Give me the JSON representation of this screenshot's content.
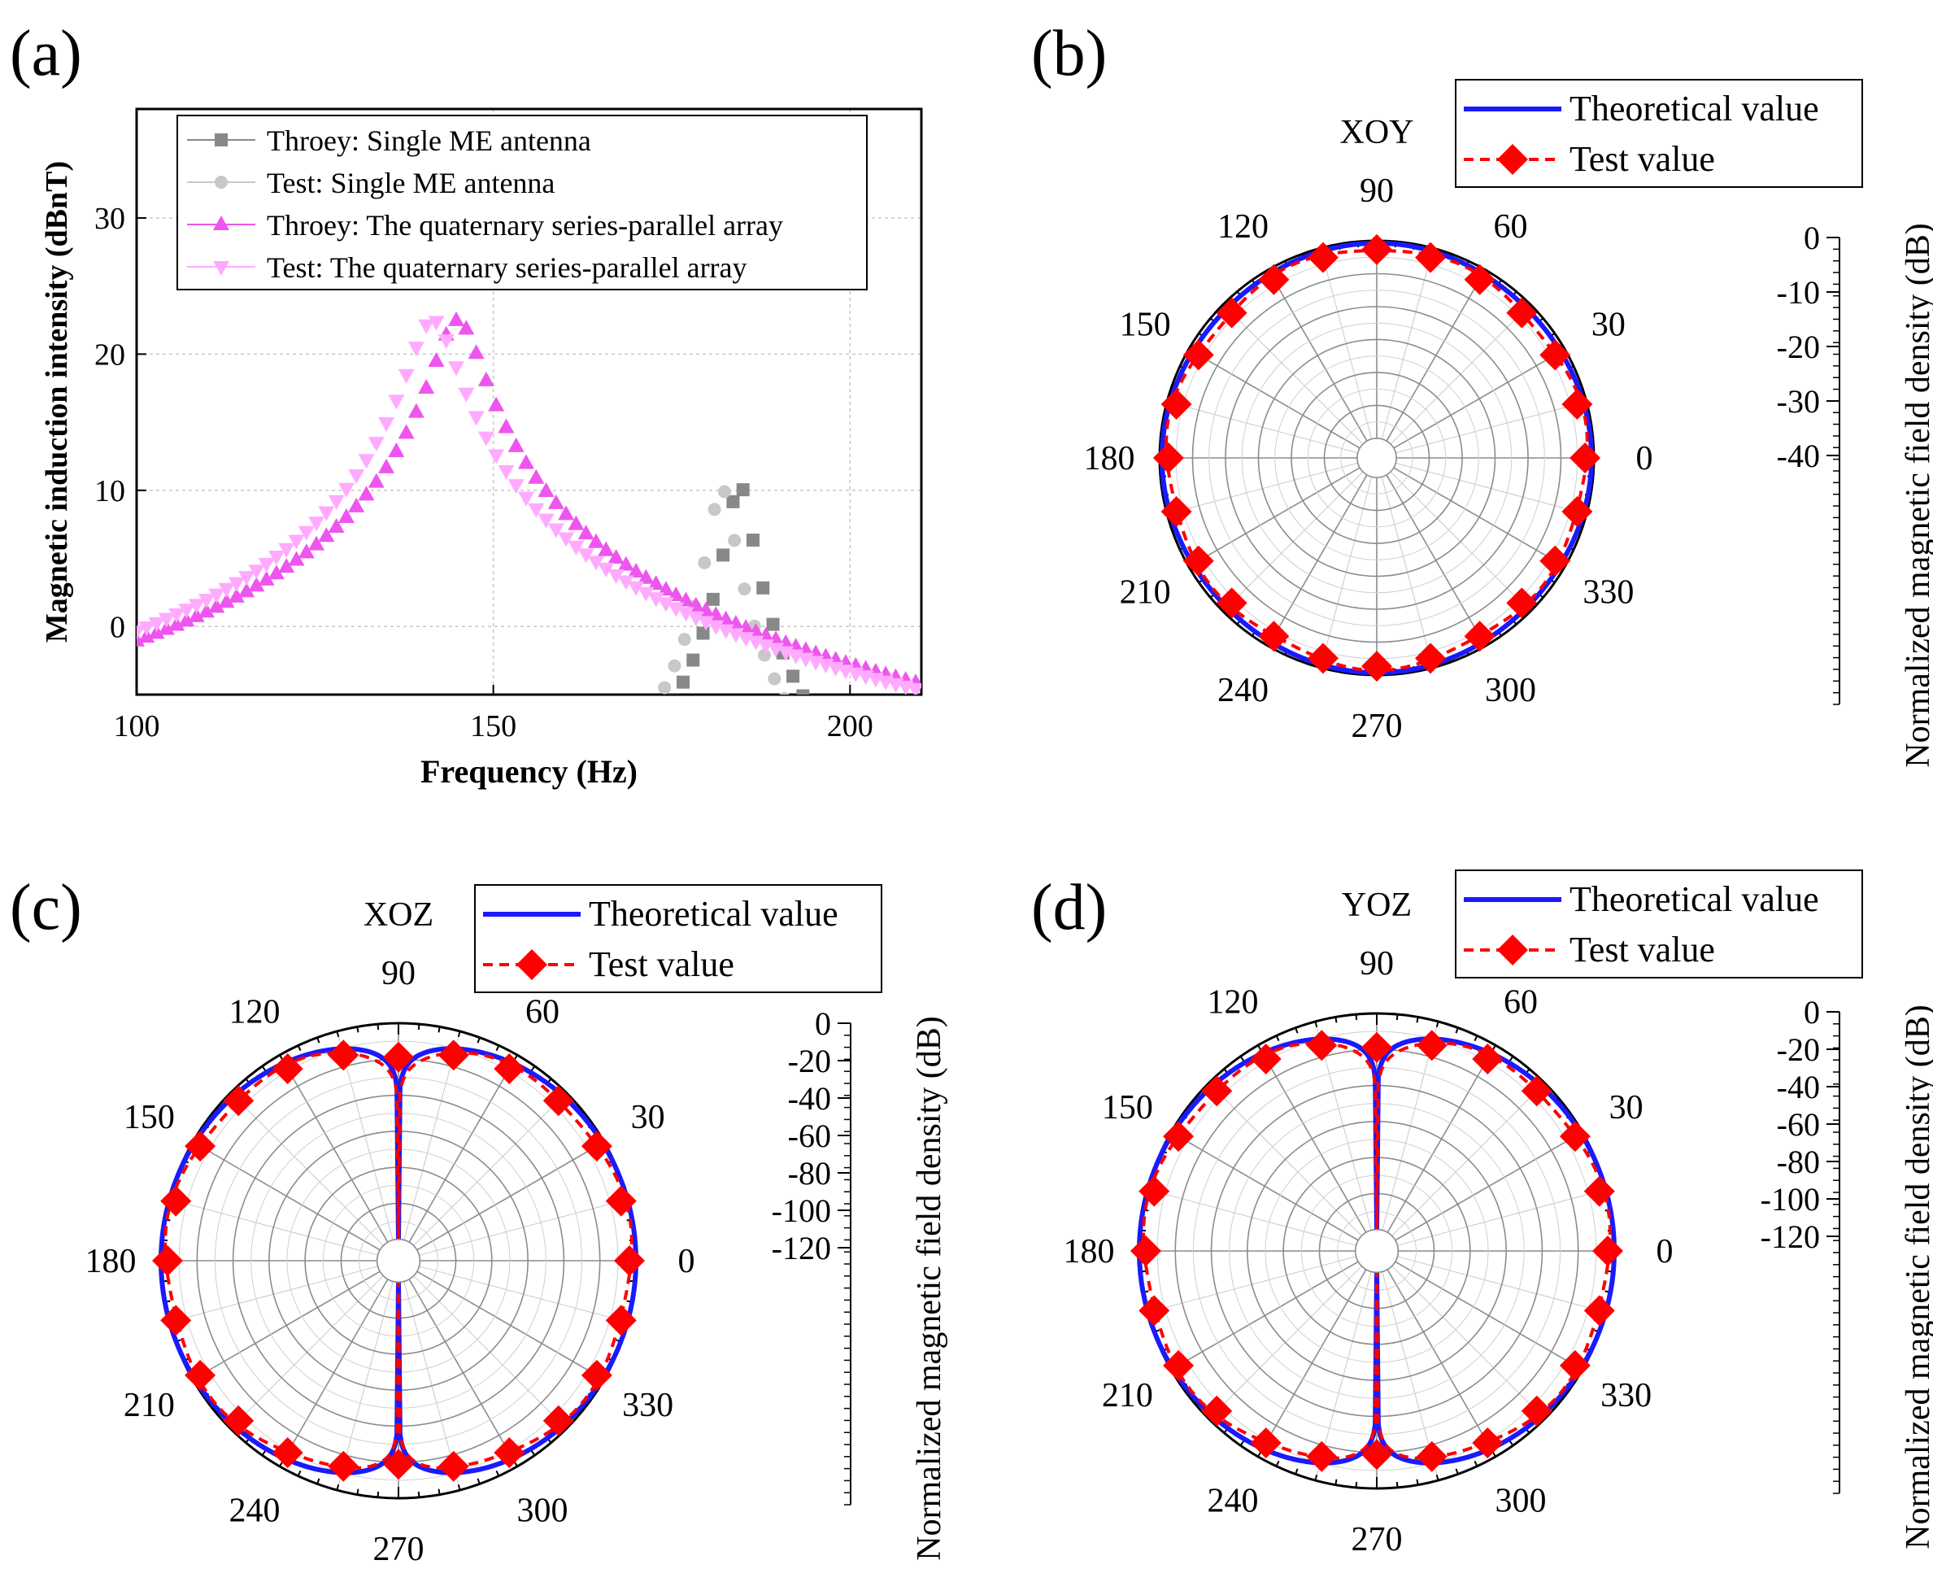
{
  "chart_data": [
    {
      "panel": "(a)",
      "type": "scatter",
      "xlabel": "Frequency (Hz)",
      "ylabel": "Magnetic induction intensity (dBnT)",
      "xlim": [
        100,
        210
      ],
      "ylim": [
        -5,
        38
      ],
      "xticks": [
        100,
        150,
        200
      ],
      "yticks": [
        0,
        10,
        20,
        30
      ],
      "grid": true,
      "legend_position": "top",
      "series": [
        {
          "name": "Throey: Single ME antenna",
          "color": "#888888",
          "marker": "square",
          "model": {
            "f0": 184.5,
            "peak": 10.5,
            "half_width": 1.5,
            "offset": 0,
            "xmin": 164,
            "xmax": 210
          }
        },
        {
          "name": "Test: Single ME antenna",
          "color": "#c8c8c8",
          "marker": "circle",
          "model": {
            "f0": 182,
            "peak": 10.2,
            "half_width": 1.5,
            "offset": 0,
            "xmin": 160,
            "xmax": 210
          }
        },
        {
          "name": "Throey: The quaternary series-parallel array",
          "color": "#ee55ee",
          "marker": "triangle-up",
          "model": {
            "f0": 145,
            "peak": 22.5,
            "half_width": 3.0,
            "offset": 2.5,
            "xmin": 100,
            "xmax": 210
          }
        },
        {
          "name": "Test: The quaternary series-parallel array",
          "color": "#ffaaff",
          "marker": "triangle-down",
          "model": {
            "f0": 141.5,
            "peak": 22.5,
            "half_width": 3.0,
            "offset": 2.5,
            "xmin": 100,
            "xmax": 210
          }
        }
      ]
    },
    {
      "panel": "(b)",
      "type": "polar",
      "plane": "XOY",
      "angle_ticks": [
        0,
        30,
        60,
        90,
        120,
        150,
        180,
        210,
        240,
        270,
        300,
        330
      ],
      "rlim": [
        -50,
        0
      ],
      "r_ticks": [
        0,
        -10,
        -20,
        -30,
        -40
      ],
      "colorbar_label": "Normalized magnetic field density (dB)",
      "pattern": "omni",
      "legend_position": "top-right",
      "series": [
        {
          "name": "Theoretical value",
          "color": "#1a1aff"
        },
        {
          "name": "Test value",
          "color": "#ff0000",
          "marker": "diamond",
          "angles": [
            0,
            15,
            30,
            45,
            60,
            75,
            90,
            105,
            120,
            135,
            150,
            165,
            180,
            195,
            210,
            225,
            240,
            255,
            270,
            285,
            300,
            315,
            330,
            345
          ]
        }
      ]
    },
    {
      "panel": "(c)",
      "type": "polar",
      "plane": "XOZ",
      "angle_ticks": [
        0,
        30,
        60,
        90,
        120,
        150,
        180,
        210,
        240,
        270,
        300,
        330
      ],
      "rlim": [
        -140,
        0
      ],
      "r_ticks": [
        0,
        -20,
        -40,
        -60,
        -80,
        -100,
        -120
      ],
      "colorbar_label": "Normalized magnetic field density (dB)",
      "pattern": "dipole",
      "legend_position": "top-right",
      "series": [
        {
          "name": "Theoretical value",
          "color": "#1a1aff"
        },
        {
          "name": "Test value",
          "color": "#ff0000",
          "marker": "diamond",
          "angles": [
            0,
            15,
            30,
            45,
            60,
            75,
            90,
            105,
            120,
            135,
            150,
            165,
            180,
            195,
            210,
            225,
            240,
            255,
            270,
            285,
            300,
            315,
            330,
            345
          ]
        }
      ]
    },
    {
      "panel": "(d)",
      "type": "polar",
      "plane": "YOZ",
      "angle_ticks": [
        0,
        30,
        60,
        90,
        120,
        150,
        180,
        210,
        240,
        270,
        300,
        330
      ],
      "rlim": [
        -140,
        0
      ],
      "r_ticks": [
        0,
        -20,
        -40,
        -60,
        -80,
        -100,
        -120
      ],
      "colorbar_label": "Normalized magnetic field density (dB)",
      "pattern": "dipole",
      "legend_position": "top-right",
      "series": [
        {
          "name": "Theoretical value",
          "color": "#1a1aff"
        },
        {
          "name": "Test value",
          "color": "#ff0000",
          "marker": "diamond",
          "angles": [
            0,
            15,
            30,
            45,
            60,
            75,
            90,
            105,
            120,
            135,
            150,
            165,
            180,
            195,
            210,
            225,
            240,
            255,
            270,
            285,
            300,
            315,
            330,
            345
          ]
        }
      ]
    }
  ]
}
